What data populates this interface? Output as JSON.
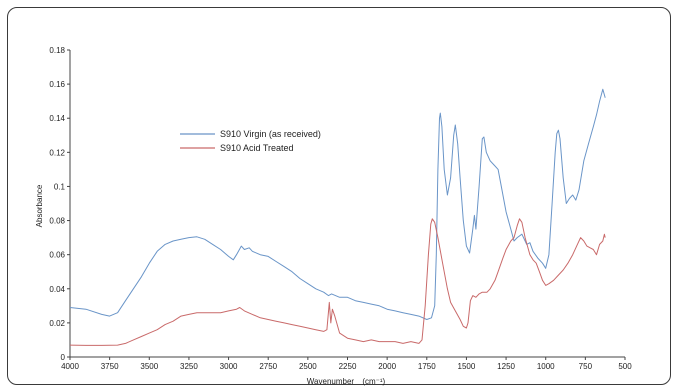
{
  "chart_data": {
    "type": "line",
    "xlabel": "Wavenumber",
    "xlabel_unit": "(cm⁻¹)",
    "ylabel": "Absorbance",
    "xlim": [
      4000,
      500
    ],
    "ylim": [
      0,
      0.18
    ],
    "x_reversed": true,
    "x_ticks": [
      4000,
      3750,
      3500,
      3250,
      3000,
      2750,
      2500,
      2250,
      2000,
      1750,
      1500,
      1250,
      1000,
      750,
      500
    ],
    "y_ticks": [
      0,
      0.02,
      0.04,
      0.06,
      0.08,
      0.1,
      0.12,
      0.14,
      0.16,
      0.18
    ],
    "y_tick_labels": [
      "0",
      "0.02",
      "0.04",
      "0.06",
      "0.08",
      "0.1",
      "0.12",
      "0.14",
      "0.16",
      "0.18"
    ],
    "grid": false,
    "legend_position": "upper-left",
    "series": [
      {
        "name": "S910 Virgin (as received)",
        "color": "#6a95c8",
        "points": [
          [
            4000,
            0.029
          ],
          [
            3900,
            0.028
          ],
          [
            3800,
            0.025
          ],
          [
            3750,
            0.024
          ],
          [
            3700,
            0.026
          ],
          [
            3650,
            0.033
          ],
          [
            3600,
            0.04
          ],
          [
            3550,
            0.047
          ],
          [
            3500,
            0.055
          ],
          [
            3450,
            0.062
          ],
          [
            3400,
            0.066
          ],
          [
            3350,
            0.068
          ],
          [
            3300,
            0.069
          ],
          [
            3250,
            0.07
          ],
          [
            3200,
            0.0705
          ],
          [
            3150,
            0.069
          ],
          [
            3100,
            0.066
          ],
          [
            3050,
            0.063
          ],
          [
            3000,
            0.059
          ],
          [
            2970,
            0.057
          ],
          [
            2950,
            0.06
          ],
          [
            2920,
            0.065
          ],
          [
            2900,
            0.063
          ],
          [
            2870,
            0.064
          ],
          [
            2850,
            0.062
          ],
          [
            2800,
            0.06
          ],
          [
            2750,
            0.059
          ],
          [
            2700,
            0.056
          ],
          [
            2650,
            0.053
          ],
          [
            2600,
            0.05
          ],
          [
            2550,
            0.046
          ],
          [
            2500,
            0.043
          ],
          [
            2450,
            0.04
          ],
          [
            2400,
            0.038
          ],
          [
            2370,
            0.036
          ],
          [
            2350,
            0.037
          ],
          [
            2300,
            0.035
          ],
          [
            2250,
            0.035
          ],
          [
            2200,
            0.033
          ],
          [
            2150,
            0.032
          ],
          [
            2100,
            0.031
          ],
          [
            2050,
            0.03
          ],
          [
            2000,
            0.028
          ],
          [
            1950,
            0.027
          ],
          [
            1900,
            0.026
          ],
          [
            1850,
            0.025
          ],
          [
            1800,
            0.024
          ],
          [
            1750,
            0.022
          ],
          [
            1720,
            0.023
          ],
          [
            1700,
            0.03
          ],
          [
            1690,
            0.06
          ],
          [
            1680,
            0.11
          ],
          [
            1670,
            0.14
          ],
          [
            1665,
            0.143
          ],
          [
            1655,
            0.135
          ],
          [
            1640,
            0.11
          ],
          [
            1620,
            0.095
          ],
          [
            1600,
            0.105
          ],
          [
            1580,
            0.13
          ],
          [
            1570,
            0.136
          ],
          [
            1555,
            0.125
          ],
          [
            1540,
            0.105
          ],
          [
            1520,
            0.08
          ],
          [
            1500,
            0.065
          ],
          [
            1480,
            0.061
          ],
          [
            1460,
            0.075
          ],
          [
            1450,
            0.083
          ],
          [
            1440,
            0.075
          ],
          [
            1420,
            0.1
          ],
          [
            1400,
            0.128
          ],
          [
            1390,
            0.129
          ],
          [
            1375,
            0.12
          ],
          [
            1350,
            0.115
          ],
          [
            1320,
            0.112
          ],
          [
            1300,
            0.11
          ],
          [
            1280,
            0.1
          ],
          [
            1250,
            0.085
          ],
          [
            1220,
            0.075
          ],
          [
            1200,
            0.068
          ],
          [
            1180,
            0.07
          ],
          [
            1150,
            0.072
          ],
          [
            1120,
            0.066
          ],
          [
            1100,
            0.067
          ],
          [
            1080,
            0.062
          ],
          [
            1050,
            0.058
          ],
          [
            1020,
            0.055
          ],
          [
            1000,
            0.052
          ],
          [
            980,
            0.06
          ],
          [
            960,
            0.09
          ],
          [
            940,
            0.12
          ],
          [
            930,
            0.131
          ],
          [
            920,
            0.133
          ],
          [
            910,
            0.128
          ],
          [
            890,
            0.105
          ],
          [
            870,
            0.09
          ],
          [
            850,
            0.093
          ],
          [
            830,
            0.095
          ],
          [
            810,
            0.092
          ],
          [
            790,
            0.098
          ],
          [
            760,
            0.115
          ],
          [
            730,
            0.125
          ],
          [
            700,
            0.135
          ],
          [
            680,
            0.142
          ],
          [
            660,
            0.15
          ],
          [
            640,
            0.157
          ],
          [
            625,
            0.152
          ]
        ]
      },
      {
        "name": "S910 Acid Treated",
        "color": "#c96a6a",
        "points": [
          [
            4000,
            0.007
          ],
          [
            3900,
            0.0068
          ],
          [
            3800,
            0.0068
          ],
          [
            3700,
            0.007
          ],
          [
            3650,
            0.008
          ],
          [
            3600,
            0.01
          ],
          [
            3550,
            0.012
          ],
          [
            3500,
            0.014
          ],
          [
            3450,
            0.016
          ],
          [
            3400,
            0.019
          ],
          [
            3350,
            0.021
          ],
          [
            3300,
            0.024
          ],
          [
            3250,
            0.025
          ],
          [
            3200,
            0.026
          ],
          [
            3150,
            0.026
          ],
          [
            3100,
            0.026
          ],
          [
            3050,
            0.026
          ],
          [
            3000,
            0.027
          ],
          [
            2950,
            0.028
          ],
          [
            2930,
            0.029
          ],
          [
            2900,
            0.027
          ],
          [
            2850,
            0.025
          ],
          [
            2800,
            0.023
          ],
          [
            2750,
            0.022
          ],
          [
            2700,
            0.021
          ],
          [
            2650,
            0.02
          ],
          [
            2600,
            0.019
          ],
          [
            2550,
            0.018
          ],
          [
            2500,
            0.017
          ],
          [
            2450,
            0.016
          ],
          [
            2400,
            0.015
          ],
          [
            2380,
            0.016
          ],
          [
            2365,
            0.032
          ],
          [
            2355,
            0.02
          ],
          [
            2345,
            0.028
          ],
          [
            2330,
            0.024
          ],
          [
            2300,
            0.014
          ],
          [
            2250,
            0.011
          ],
          [
            2200,
            0.01
          ],
          [
            2150,
            0.009
          ],
          [
            2100,
            0.01
          ],
          [
            2050,
            0.009
          ],
          [
            2000,
            0.009
          ],
          [
            1950,
            0.009
          ],
          [
            1900,
            0.008
          ],
          [
            1850,
            0.009
          ],
          [
            1800,
            0.008
          ],
          [
            1780,
            0.01
          ],
          [
            1760,
            0.03
          ],
          [
            1740,
            0.06
          ],
          [
            1725,
            0.078
          ],
          [
            1715,
            0.081
          ],
          [
            1700,
            0.079
          ],
          [
            1680,
            0.07
          ],
          [
            1650,
            0.055
          ],
          [
            1620,
            0.04
          ],
          [
            1600,
            0.032
          ],
          [
            1570,
            0.027
          ],
          [
            1540,
            0.022
          ],
          [
            1520,
            0.018
          ],
          [
            1500,
            0.017
          ],
          [
            1490,
            0.02
          ],
          [
            1475,
            0.033
          ],
          [
            1460,
            0.036
          ],
          [
            1440,
            0.035
          ],
          [
            1420,
            0.037
          ],
          [
            1400,
            0.038
          ],
          [
            1370,
            0.038
          ],
          [
            1350,
            0.04
          ],
          [
            1320,
            0.045
          ],
          [
            1300,
            0.05
          ],
          [
            1270,
            0.058
          ],
          [
            1250,
            0.063
          ],
          [
            1220,
            0.068
          ],
          [
            1200,
            0.07
          ],
          [
            1180,
            0.077
          ],
          [
            1165,
            0.081
          ],
          [
            1150,
            0.079
          ],
          [
            1130,
            0.07
          ],
          [
            1100,
            0.06
          ],
          [
            1080,
            0.057
          ],
          [
            1060,
            0.055
          ],
          [
            1040,
            0.05
          ],
          [
            1020,
            0.045
          ],
          [
            1000,
            0.042
          ],
          [
            980,
            0.043
          ],
          [
            950,
            0.045
          ],
          [
            920,
            0.048
          ],
          [
            890,
            0.051
          ],
          [
            860,
            0.055
          ],
          [
            830,
            0.06
          ],
          [
            800,
            0.066
          ],
          [
            780,
            0.07
          ],
          [
            760,
            0.068
          ],
          [
            740,
            0.065
          ],
          [
            720,
            0.064
          ],
          [
            700,
            0.063
          ],
          [
            680,
            0.06
          ],
          [
            660,
            0.066
          ],
          [
            640,
            0.068
          ],
          [
            630,
            0.072
          ],
          [
            625,
            0.07
          ]
        ]
      }
    ]
  }
}
